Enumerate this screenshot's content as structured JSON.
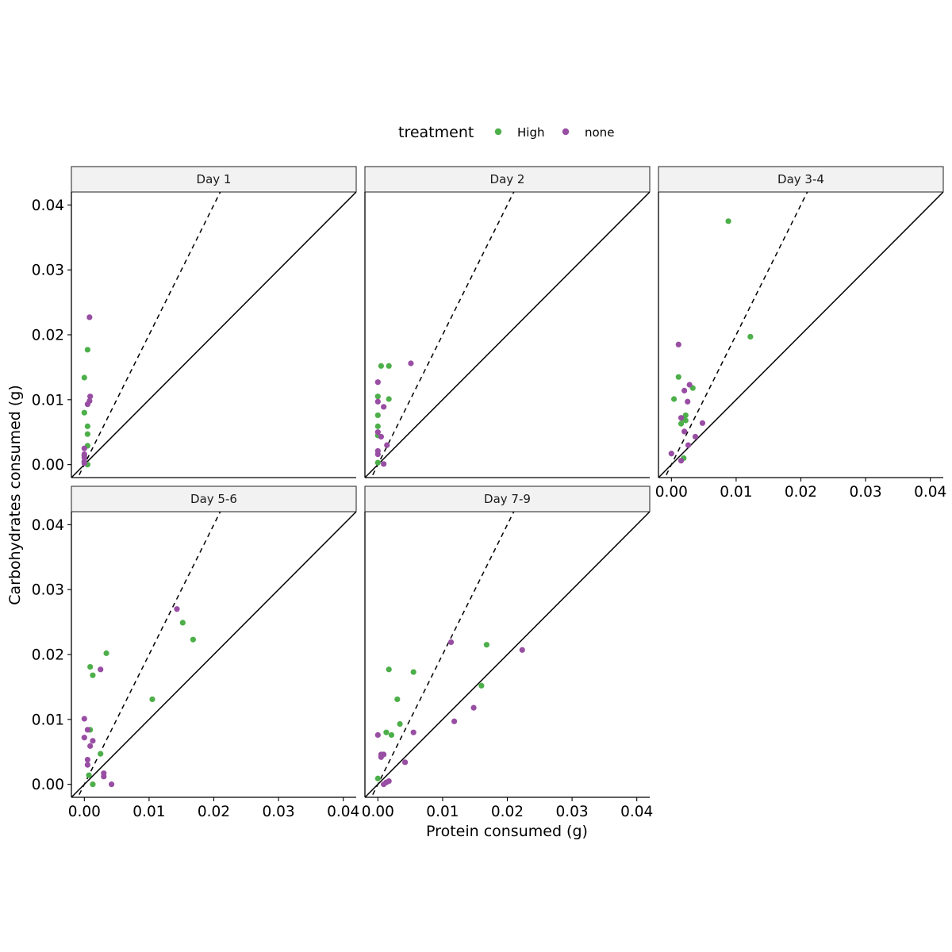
{
  "chart_data": {
    "type": "scatter",
    "facet_by": "day",
    "xlabel": "Protein consumed (g)",
    "ylabel": "Carbohydrates consumed (g)",
    "xlim": [
      -0.002,
      0.042
    ],
    "ylim": [
      -0.002,
      0.042
    ],
    "x_ticks": [
      "0.00",
      "0.01",
      "0.02",
      "0.03",
      "0.04"
    ],
    "y_ticks": [
      "0.00",
      "0.01",
      "0.02",
      "0.03",
      "0.04"
    ],
    "x_tick_values": [
      0,
      0.01,
      0.02,
      0.03,
      0.04
    ],
    "y_tick_values": [
      0,
      0.01,
      0.02,
      0.03,
      0.04
    ],
    "reference_lines": [
      {
        "style": "solid",
        "slope": 1,
        "intercept": 0
      },
      {
        "style": "dashed",
        "slope": 2,
        "intercept": 0
      }
    ],
    "legend": {
      "title": "treatment",
      "position": "top",
      "entries": [
        {
          "label": "High",
          "color": "#4daf4a"
        },
        {
          "label": "none",
          "color": "#984ea3"
        }
      ]
    },
    "colors": {
      "High": "#4daf4a",
      "none": "#984ea3"
    },
    "panels": [
      {
        "strip": "Day 1",
        "series": [
          {
            "treatment": "High",
            "points": [
              [
                0.0005,
                0.0177
              ],
              [
                0.0,
                0.0134
              ],
              [
                0.0,
                0.008
              ],
              [
                0.0005,
                0.0059
              ],
              [
                0.0005,
                0.0047
              ],
              [
                0.0005,
                0.0029
              ],
              [
                0.0,
                0.0014
              ],
              [
                0.0,
                0.0005
              ],
              [
                0.0005,
                0.0
              ]
            ]
          },
          {
            "treatment": "none",
            "points": [
              [
                0.0008,
                0.0227
              ],
              [
                0.0009,
                0.0105
              ],
              [
                0.0008,
                0.0098
              ],
              [
                0.0005,
                0.0093
              ],
              [
                0.0,
                0.0025
              ],
              [
                0.0,
                0.0016
              ],
              [
                0.0,
                0.0011
              ],
              [
                0.0,
                0.0005
              ],
              [
                0.0,
                0.0002
              ]
            ]
          }
        ]
      },
      {
        "strip": "Day 2",
        "series": [
          {
            "treatment": "High",
            "points": [
              [
                0.0005,
                0.0152
              ],
              [
                0.0017,
                0.0152
              ],
              [
                0.0,
                0.0105
              ],
              [
                0.0017,
                0.0101
              ],
              [
                0.0,
                0.0076
              ],
              [
                0.0,
                0.0059
              ],
              [
                0.0,
                0.0045
              ],
              [
                0.0,
                0.0003
              ]
            ]
          },
          {
            "treatment": "none",
            "points": [
              [
                0.0051,
                0.0156
              ],
              [
                0.0,
                0.0127
              ],
              [
                0.0,
                0.0097
              ],
              [
                0.0009,
                0.0089
              ],
              [
                0.0,
                0.005
              ],
              [
                0.0005,
                0.0043
              ],
              [
                0.0014,
                0.003
              ],
              [
                0.0,
                0.0021
              ],
              [
                0.0,
                0.0016
              ],
              [
                0.0009,
                0.0001
              ]
            ]
          }
        ]
      },
      {
        "strip": "Day 3-4",
        "series": [
          {
            "treatment": "High",
            "points": [
              [
                0.0088,
                0.0375
              ],
              [
                0.0122,
                0.0197
              ],
              [
                0.0011,
                0.0135
              ],
              [
                0.0033,
                0.0118
              ],
              [
                0.0004,
                0.0101
              ],
              [
                0.0022,
                0.0076
              ],
              [
                0.0017,
                0.0071
              ],
              [
                0.0022,
                0.0068
              ],
              [
                0.0015,
                0.0063
              ],
              [
                0.0019,
                0.001
              ]
            ]
          },
          {
            "treatment": "none",
            "points": [
              [
                0.0011,
                0.0185
              ],
              [
                0.0028,
                0.0123
              ],
              [
                0.002,
                0.0114
              ],
              [
                0.0025,
                0.0097
              ],
              [
                0.0015,
                0.0072
              ],
              [
                0.0048,
                0.0064
              ],
              [
                0.002,
                0.0051
              ],
              [
                0.0037,
                0.0043
              ],
              [
                0.0026,
                0.003
              ],
              [
                0.0,
                0.0017
              ],
              [
                0.0015,
                0.0006
              ]
            ]
          }
        ]
      },
      {
        "strip": "Day 5-6",
        "series": [
          {
            "treatment": "High",
            "points": [
              [
                0.0152,
                0.0249
              ],
              [
                0.0168,
                0.0223
              ],
              [
                0.0034,
                0.0202
              ],
              [
                0.0009,
                0.0181
              ],
              [
                0.0013,
                0.0168
              ],
              [
                0.0105,
                0.0131
              ],
              [
                0.0009,
                0.0084
              ],
              [
                0.0025,
                0.0047
              ],
              [
                0.0007,
                0.0014
              ],
              [
                0.0013,
                0.0
              ]
            ]
          },
          {
            "treatment": "none",
            "points": [
              [
                0.0143,
                0.027
              ],
              [
                0.0025,
                0.0177
              ],
              [
                0.0,
                0.0101
              ],
              [
                0.0005,
                0.0084
              ],
              [
                0.0013,
                0.0067
              ],
              [
                0.0,
                0.0072
              ],
              [
                0.0009,
                0.0059
              ],
              [
                0.0005,
                0.0038
              ],
              [
                0.0005,
                0.003
              ],
              [
                0.003,
                0.0017
              ],
              [
                0.003,
                0.0012
              ],
              [
                0.0042,
                0.0
              ]
            ]
          }
        ]
      },
      {
        "strip": "Day 7-9",
        "series": [
          {
            "treatment": "High",
            "points": [
              [
                0.0168,
                0.0215
              ],
              [
                0.0017,
                0.0177
              ],
              [
                0.0055,
                0.0173
              ],
              [
                0.016,
                0.0152
              ],
              [
                0.003,
                0.0131
              ],
              [
                0.0034,
                0.0093
              ],
              [
                0.0013,
                0.008
              ],
              [
                0.0021,
                0.0076
              ],
              [
                0.0,
                0.0009
              ]
            ]
          },
          {
            "treatment": "none",
            "points": [
              [
                0.0223,
                0.0207
              ],
              [
                0.0113,
                0.0219
              ],
              [
                0.0148,
                0.0118
              ],
              [
                0.0118,
                0.0097
              ],
              [
                0.0055,
                0.008
              ],
              [
                0.0,
                0.0076
              ],
              [
                0.0009,
                0.0046
              ],
              [
                0.0005,
                0.0046
              ],
              [
                0.0005,
                0.0042
              ],
              [
                0.0042,
                0.0034
              ],
              [
                0.0017,
                0.0005
              ],
              [
                0.0013,
                0.0003
              ],
              [
                0.0009,
                0.0
              ]
            ]
          }
        ]
      }
    ]
  }
}
